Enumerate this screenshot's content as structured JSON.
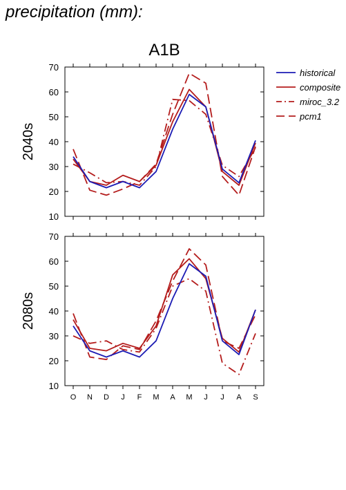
{
  "page": {
    "title": "precipitation (mm):"
  },
  "colors": {
    "historical": "#1c1cb4",
    "scenario": "#b41c1c"
  },
  "chart_data": {
    "type": "line",
    "title": "A1B",
    "categories": [
      "O",
      "N",
      "D",
      "J",
      "F",
      "M",
      "A",
      "M",
      "J",
      "J",
      "A",
      "S"
    ],
    "ylim": [
      10,
      70
    ],
    "yticks": [
      10,
      20,
      30,
      40,
      50,
      60,
      70
    ],
    "grid": false,
    "legend_position": "right",
    "legend": [
      {
        "name": "historical",
        "color": "#1c1cb4",
        "style": "solid"
      },
      {
        "name": "composite",
        "color": "#b41c1c",
        "style": "solid"
      },
      {
        "name": "miroc_3.2",
        "color": "#b41c1c",
        "style": "dashdot"
      },
      {
        "name": "pcm1",
        "color": "#b41c1c",
        "style": "dashed"
      }
    ],
    "panels": [
      {
        "label": "2040s",
        "series": [
          {
            "name": "historical",
            "values": [
              34,
              24,
              21.5,
              24,
              21.5,
              28,
              45,
              59,
              54,
              29,
              23.5,
              40.5
            ]
          },
          {
            "name": "composite",
            "values": [
              33,
              24,
              22.5,
              26.5,
              24,
              30.5,
              48,
              61,
              54,
              28,
              22.5,
              39.5
            ]
          },
          {
            "name": "miroc_3.2",
            "values": [
              31,
              27.5,
              23.5,
              24,
              22.5,
              30,
              57,
              56.5,
              51,
              30.5,
              26,
              37.5
            ]
          },
          {
            "name": "pcm1",
            "values": [
              37,
              20.5,
              18.5,
              21,
              24,
              31,
              51,
              67.5,
              63.5,
              26,
              18.5,
              38
            ]
          }
        ]
      },
      {
        "label": "2080s",
        "series": [
          {
            "name": "historical",
            "values": [
              34,
              24,
              21.5,
              24,
              21.5,
              28,
              45,
              59,
              54,
              28,
              22.5,
              40.5
            ]
          },
          {
            "name": "composite",
            "values": [
              36.5,
              25,
              24,
              27,
              25,
              34,
              54.5,
              61,
              53,
              29,
              23.5,
              40.5
            ]
          },
          {
            "name": "miroc_3.2",
            "values": [
              30,
              27,
              28,
              24.5,
              23.5,
              33,
              50,
              53,
              48,
              19,
              14.5,
              31
            ]
          },
          {
            "name": "pcm1",
            "values": [
              39,
              21.5,
              20.5,
              26,
              24.5,
              36,
              52,
              65,
              58.5,
              28,
              25,
              38.5
            ]
          }
        ]
      }
    ]
  }
}
